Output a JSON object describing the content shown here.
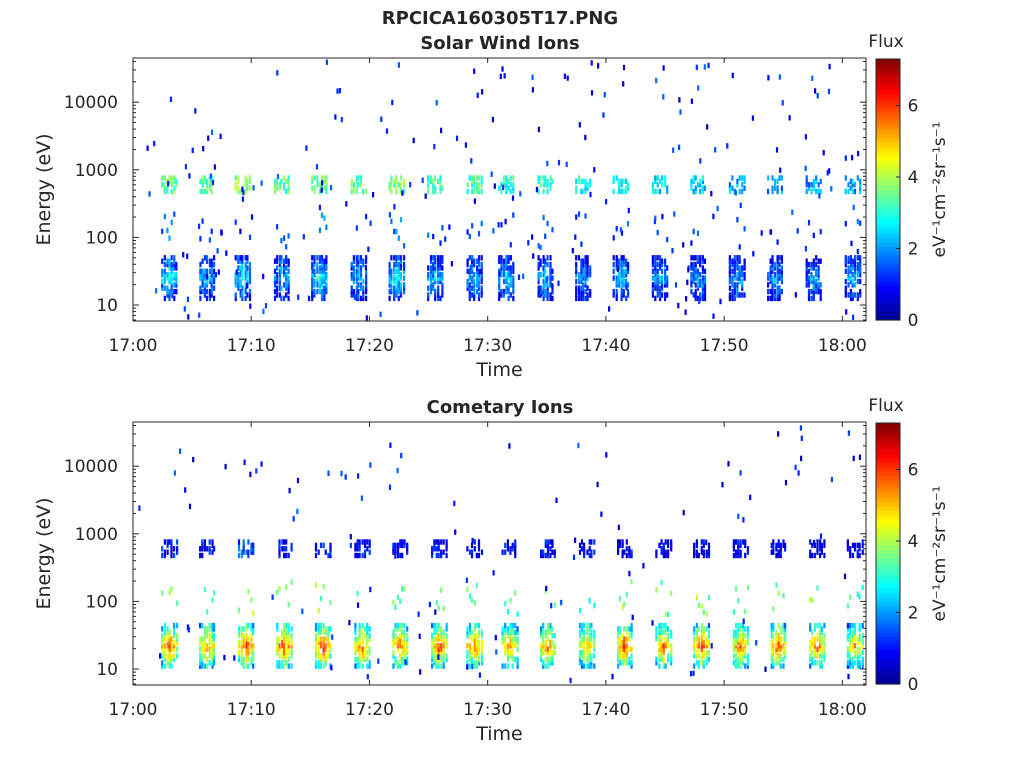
{
  "figure_title": "RPCICA160305T17.PNG",
  "colors": {
    "scale": [
      "#00008f",
      "#0000ff",
      "#00ffff",
      "#ffff00",
      "#ff0000",
      "#800000"
    ],
    "axis": "#262626"
  },
  "chart_data": [
    {
      "type": "heatmap",
      "title": "Solar Wind Ions",
      "xlabel": "Time",
      "ylabel": "Energy (eV)",
      "x_ticks": [
        "17:00",
        "17:10",
        "17:20",
        "17:30",
        "17:40",
        "17:50",
        "18:00"
      ],
      "x_tick_minutes": [
        0,
        10,
        20,
        30,
        40,
        50,
        60
      ],
      "xlim_minutes": [
        0,
        62
      ],
      "y_scale": "log",
      "y_ticks": [
        "10",
        "100",
        "1000",
        "10000"
      ],
      "y_tick_values": [
        10,
        100,
        1000,
        10000
      ],
      "ylim": [
        5.8,
        45000
      ],
      "colorbar": {
        "label_top": "Flux",
        "label": "eV⁻¹cm⁻²sr⁻¹s⁻¹",
        "ticks": [
          "0",
          "2",
          "4",
          "6"
        ],
        "tick_values": [
          0,
          2,
          4,
          6
        ],
        "range": [
          0,
          7.3
        ]
      },
      "bursts": [
        {
          "t": 3.0,
          "band_e": 25,
          "band_v": 2.5,
          "ion_v": 3.5
        },
        {
          "t": 6.2,
          "band_e": 25,
          "band_v": 2.0,
          "ion_v": 3.5
        },
        {
          "t": 9.2,
          "band_e": 25,
          "band_v": 2.5,
          "ion_v": 3.8
        },
        {
          "t": 12.5,
          "band_e": 25,
          "band_v": 2.0,
          "ion_v": 3.5
        },
        {
          "t": 15.7,
          "band_e": 25,
          "band_v": 2.5,
          "ion_v": 3.5
        },
        {
          "t": 19.0,
          "band_e": 25,
          "band_v": 2.0,
          "ion_v": 3.5
        },
        {
          "t": 22.2,
          "band_e": 25,
          "band_v": 2.5,
          "ion_v": 3.6
        },
        {
          "t": 25.5,
          "band_e": 25,
          "band_v": 2.0,
          "ion_v": 3.2
        },
        {
          "t": 28.8,
          "band_e": 25,
          "band_v": 2.0,
          "ion_v": 3.2
        },
        {
          "t": 31.5,
          "band_e": 25,
          "band_v": 2.2,
          "ion_v": 3.0
        },
        {
          "t": 34.8,
          "band_e": 25,
          "band_v": 2.0,
          "ion_v": 3.0
        },
        {
          "t": 38.0,
          "band_e": 25,
          "band_v": 1.8,
          "ion_v": 2.8
        },
        {
          "t": 41.2,
          "band_e": 25,
          "band_v": 2.0,
          "ion_v": 2.8
        },
        {
          "t": 44.5,
          "band_e": 25,
          "band_v": 1.8,
          "ion_v": 2.6
        },
        {
          "t": 47.7,
          "band_e": 25,
          "band_v": 1.8,
          "ion_v": 2.4
        },
        {
          "t": 51.0,
          "band_e": 25,
          "band_v": 1.8,
          "ion_v": 2.2
        },
        {
          "t": 54.2,
          "band_e": 25,
          "band_v": 1.8,
          "ion_v": 2.0
        },
        {
          "t": 57.5,
          "band_e": 25,
          "band_v": 1.8,
          "ion_v": 2.0
        },
        {
          "t": 60.8,
          "band_e": 25,
          "band_v": 2.0,
          "ion_v": 2.0
        }
      ],
      "ion_band_e": 600,
      "noise_count": 230,
      "seed": 7
    },
    {
      "type": "heatmap",
      "title": "Cometary Ions",
      "xlabel": "Time",
      "ylabel": "Energy (eV)",
      "x_ticks": [
        "17:00",
        "17:10",
        "17:20",
        "17:30",
        "17:40",
        "17:50",
        "18:00"
      ],
      "x_tick_minutes": [
        0,
        10,
        20,
        30,
        40,
        50,
        60
      ],
      "xlim_minutes": [
        0,
        62
      ],
      "y_scale": "log",
      "y_ticks": [
        "10",
        "100",
        "1000",
        "10000"
      ],
      "y_tick_values": [
        10,
        100,
        1000,
        10000
      ],
      "ylim": [
        5.8,
        45000
      ],
      "colorbar": {
        "label_top": "Flux",
        "label": "eV⁻¹cm⁻²sr⁻¹s⁻¹",
        "ticks": [
          "0",
          "2",
          "4",
          "6"
        ],
        "tick_values": [
          0,
          2,
          4,
          6
        ],
        "range": [
          0,
          7.3
        ]
      },
      "bursts": [
        {
          "t": 3.0,
          "band_e": 22,
          "band_v": 5.2,
          "ion_v": 1.0
        },
        {
          "t": 6.2,
          "band_e": 22,
          "band_v": 4.8,
          "ion_v": 0.9
        },
        {
          "t": 9.5,
          "band_e": 22,
          "band_v": 5.5,
          "ion_v": 1.5
        },
        {
          "t": 12.7,
          "band_e": 22,
          "band_v": 5.3,
          "ion_v": 1.0
        },
        {
          "t": 16.0,
          "band_e": 22,
          "band_v": 5.3,
          "ion_v": 1.0
        },
        {
          "t": 19.3,
          "band_e": 22,
          "band_v": 5.0,
          "ion_v": 0.9
        },
        {
          "t": 22.5,
          "band_e": 22,
          "band_v": 5.0,
          "ion_v": 0.9
        },
        {
          "t": 25.8,
          "band_e": 22,
          "band_v": 5.2,
          "ion_v": 0.9
        },
        {
          "t": 28.8,
          "band_e": 22,
          "band_v": 5.0,
          "ion_v": 0.9
        },
        {
          "t": 31.8,
          "band_e": 22,
          "band_v": 4.6,
          "ion_v": 0.9
        },
        {
          "t": 35.0,
          "band_e": 22,
          "band_v": 4.8,
          "ion_v": 0.8
        },
        {
          "t": 38.3,
          "band_e": 22,
          "band_v": 4.6,
          "ion_v": 0.8
        },
        {
          "t": 41.5,
          "band_e": 22,
          "band_v": 5.4,
          "ion_v": 0.8
        },
        {
          "t": 44.8,
          "band_e": 22,
          "band_v": 5.0,
          "ion_v": 0.7
        },
        {
          "t": 48.0,
          "band_e": 22,
          "band_v": 5.2,
          "ion_v": 0.7
        },
        {
          "t": 51.3,
          "band_e": 22,
          "band_v": 5.0,
          "ion_v": 0.7
        },
        {
          "t": 54.5,
          "band_e": 22,
          "band_v": 5.3,
          "ion_v": 0.7
        },
        {
          "t": 57.8,
          "band_e": 22,
          "band_v": 5.0,
          "ion_v": 0.7
        },
        {
          "t": 61.0,
          "band_e": 22,
          "band_v": 4.5,
          "ion_v": 0.7
        }
      ],
      "ion_band_e": 600,
      "noise_count": 110,
      "seed": 19
    }
  ]
}
